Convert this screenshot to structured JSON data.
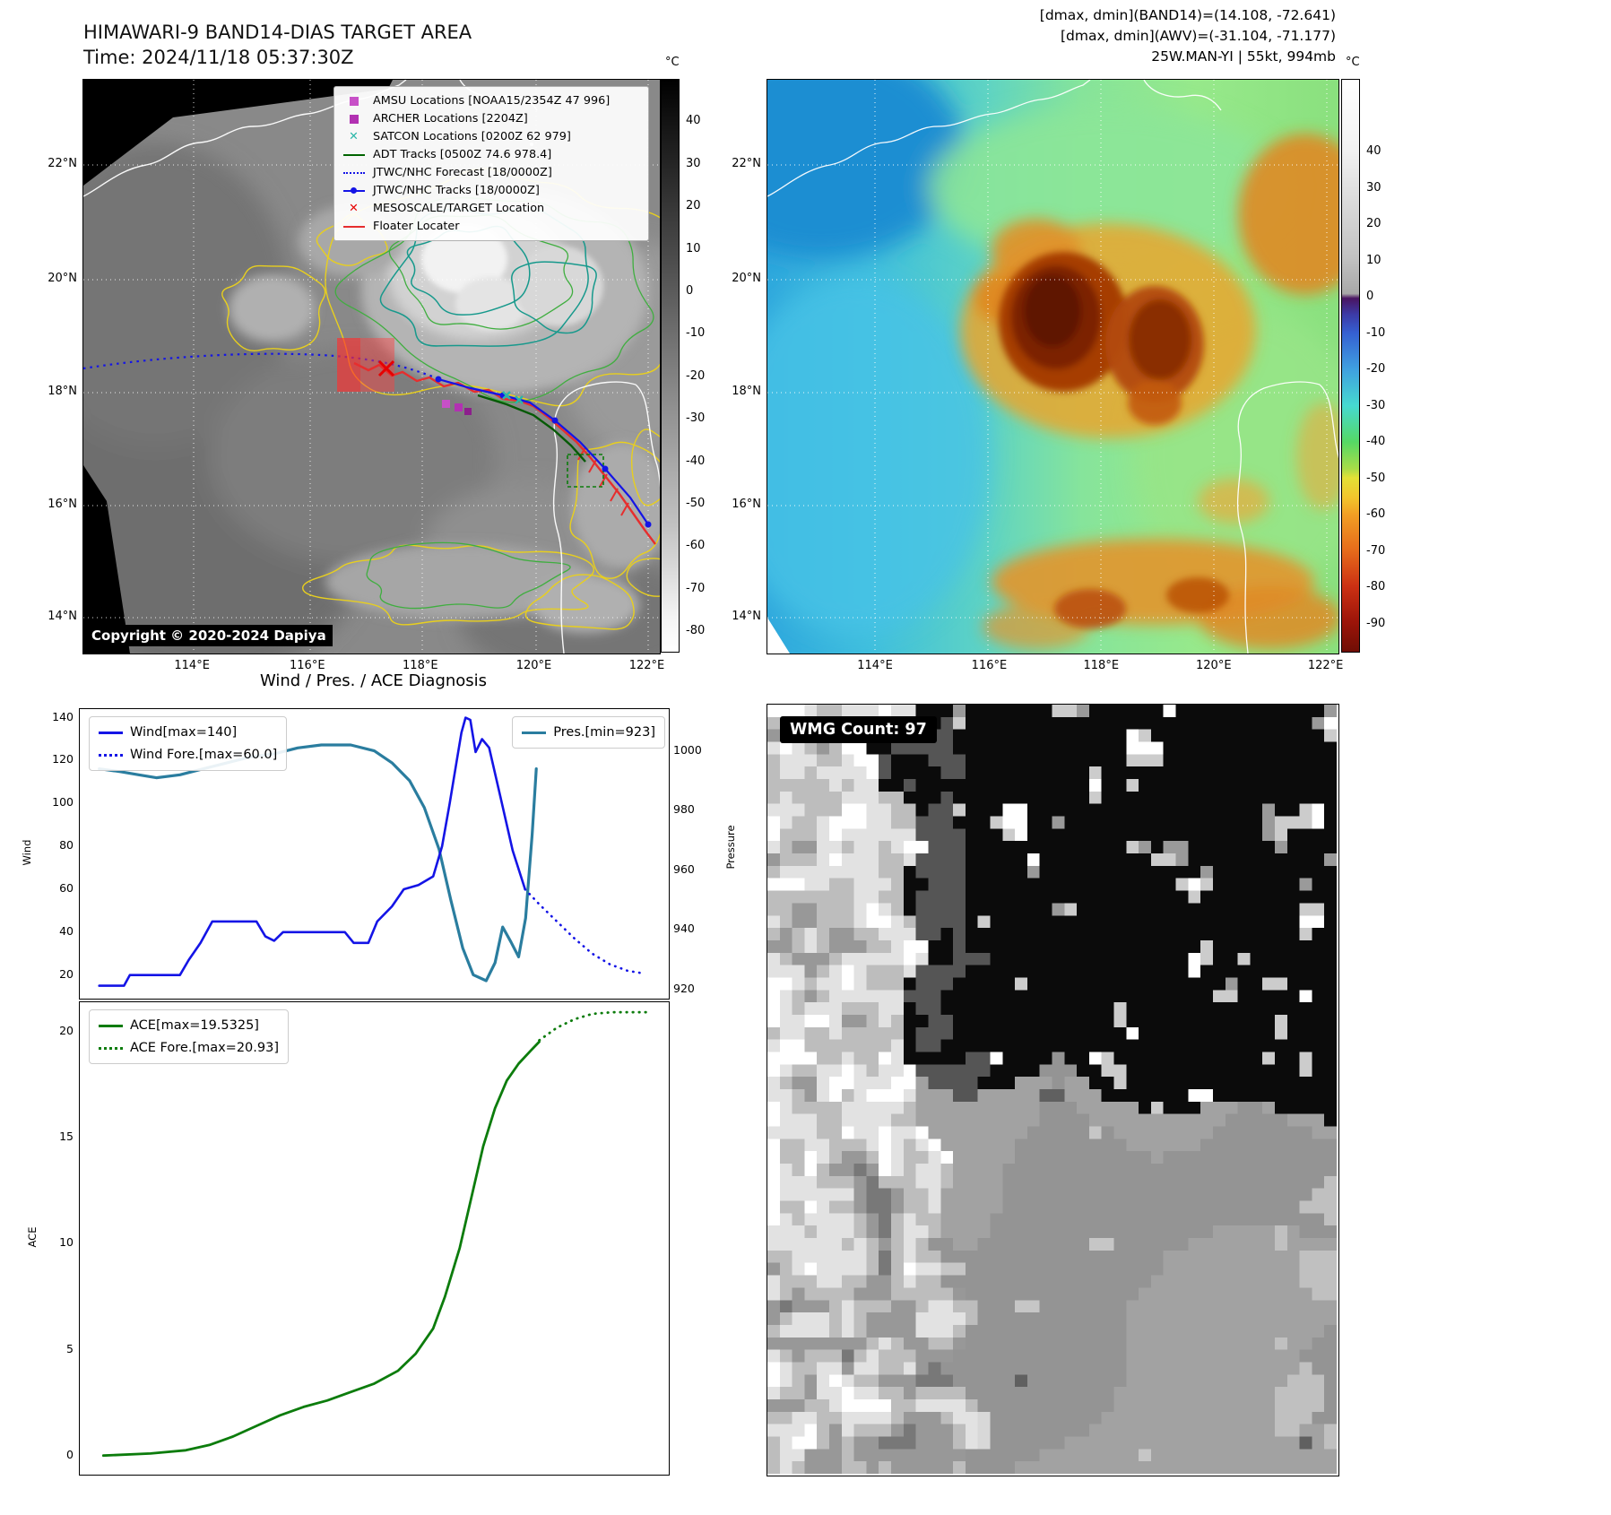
{
  "panels": {
    "band14": {
      "title_line1": "HIMAWARI-9 BAND14-DIAS TARGET AREA",
      "title_line2": "Time: 2024/11/18 05:37:30Z",
      "copyright": "Copyright © 2020-2024 Dapiya",
      "colorbar_unit": "°C",
      "colorbar_ticks": [
        40,
        30,
        20,
        10,
        0,
        -10,
        -20,
        -30,
        -40,
        -50,
        -60,
        -70,
        -80
      ],
      "x_ticks": [
        "114°E",
        "116°E",
        "118°E",
        "120°E",
        "122°E"
      ],
      "y_ticks": [
        "22°N",
        "20°N",
        "18°N",
        "16°N",
        "14°N"
      ],
      "legend": [
        {
          "marker": "square",
          "color": "#c750c7",
          "label": "AMSU Locations [NOAA15/2354Z 47 996]"
        },
        {
          "marker": "square",
          "color": "#b231b2",
          "label": "ARCHER Locations [2204Z]"
        },
        {
          "marker": "x",
          "color": "#29b6a8",
          "label": "SATCON Locations [0200Z 62 979]"
        },
        {
          "marker": "line",
          "color": "#006400",
          "label": "ADT Tracks [0500Z 74.6 978.4]"
        },
        {
          "marker": "dotted",
          "color": "#1414e6",
          "label": "JTWC/NHC Forecast [18/0000Z]"
        },
        {
          "marker": "line-dot",
          "color": "#1414e6",
          "label": "JTWC/NHC Tracks [18/0000Z]"
        },
        {
          "marker": "x",
          "color": "#e60000",
          "label": "MESOSCALE/TARGET Location"
        },
        {
          "marker": "line",
          "color": "#e62e2e",
          "label": "Floater Locater"
        }
      ]
    },
    "awv": {
      "header_lines": [
        "[dmax, dmin](BAND14)=(14.108, -72.641)",
        "[dmax, dmin](AWV)=(-31.104, -71.177)",
        "25W.MAN-YI | 55kt, 994mb"
      ],
      "colorbar_unit": "°C",
      "colorbar_ticks": [
        40,
        30,
        20,
        10,
        0,
        -10,
        -20,
        -30,
        -40,
        -50,
        -60,
        -70,
        -80,
        -90
      ],
      "x_ticks": [
        "114°E",
        "116°E",
        "118°E",
        "120°E",
        "122°E"
      ],
      "y_ticks": [
        "22°N",
        "20°N",
        "18°N",
        "16°N",
        "14°N"
      ]
    },
    "diagnosis": {
      "title": "Wind / Pres. / ACE Diagnosis"
    },
    "wmg": {
      "label": "WMG Count: 97"
    }
  },
  "chart_data": [
    {
      "type": "line",
      "title": "Wind / Pres. / ACE Diagnosis",
      "xlabel": "",
      "ylabel": "Wind",
      "y2label": "Pressure",
      "ylim": [
        9,
        144
      ],
      "y2lim": [
        917,
        1014
      ],
      "yticks": [
        20,
        40,
        60,
        80,
        100,
        120,
        140
      ],
      "y2ticks": [
        920,
        940,
        960,
        980,
        1000
      ],
      "grid": false,
      "legend_position": {
        "wind": "upper left",
        "pressure": "upper right"
      },
      "series": [
        {
          "name": "Wind[max=140]",
          "axis": "left",
          "style": "solid",
          "color": "#1414e6",
          "points": [
            [
              0.033,
              15
            ],
            [
              0.075,
              15
            ],
            [
              0.085,
              20
            ],
            [
              0.17,
              20
            ],
            [
              0.185,
              27
            ],
            [
              0.205,
              35
            ],
            [
              0.225,
              45
            ],
            [
              0.3,
              45
            ],
            [
              0.315,
              38
            ],
            [
              0.33,
              36
            ],
            [
              0.345,
              40
            ],
            [
              0.45,
              40
            ],
            [
              0.465,
              35
            ],
            [
              0.49,
              35
            ],
            [
              0.505,
              45
            ],
            [
              0.53,
              52
            ],
            [
              0.55,
              60
            ],
            [
              0.575,
              62
            ],
            [
              0.6,
              66
            ],
            [
              0.615,
              80
            ],
            [
              0.628,
              100
            ],
            [
              0.64,
              120
            ],
            [
              0.648,
              133
            ],
            [
              0.655,
              140
            ],
            [
              0.663,
              139
            ],
            [
              0.672,
              124
            ],
            [
              0.683,
              130
            ],
            [
              0.695,
              126
            ],
            [
              0.715,
              102
            ],
            [
              0.735,
              78
            ],
            [
              0.756,
              60
            ]
          ]
        },
        {
          "name": "Wind Fore.[max=60.0]",
          "axis": "left",
          "style": "dotted",
          "color": "#1414e6",
          "points": [
            [
              0.756,
              60
            ],
            [
              0.78,
              53
            ],
            [
              0.81,
              45
            ],
            [
              0.84,
              37
            ],
            [
              0.87,
              30
            ],
            [
              0.9,
              25
            ],
            [
              0.93,
              22
            ],
            [
              0.952,
              21
            ]
          ]
        },
        {
          "name": "Pres.[min=923]",
          "axis": "right",
          "style": "solid",
          "color": "#2a7d9f",
          "points": [
            [
              0.033,
              994
            ],
            [
              0.07,
              993
            ],
            [
              0.1,
              992
            ],
            [
              0.13,
              991
            ],
            [
              0.17,
              992
            ],
            [
              0.21,
              994
            ],
            [
              0.25,
              996
            ],
            [
              0.29,
              998
            ],
            [
              0.33,
              999
            ],
            [
              0.37,
              1001
            ],
            [
              0.41,
              1002
            ],
            [
              0.46,
              1002
            ],
            [
              0.5,
              1000
            ],
            [
              0.53,
              996
            ],
            [
              0.56,
              990
            ],
            [
              0.585,
              981
            ],
            [
              0.61,
              967
            ],
            [
              0.63,
              950
            ],
            [
              0.65,
              934
            ],
            [
              0.668,
              925
            ],
            [
              0.69,
              923
            ],
            [
              0.705,
              929
            ],
            [
              0.718,
              941
            ],
            [
              0.732,
              936
            ],
            [
              0.745,
              931
            ],
            [
              0.757,
              944
            ],
            [
              0.768,
              972
            ],
            [
              0.775,
              994
            ]
          ]
        }
      ]
    },
    {
      "type": "line",
      "title": "",
      "xlabel": "",
      "ylabel": "ACE",
      "ylim": [
        -0.9,
        21.4
      ],
      "yticks": [
        0,
        5,
        10,
        15,
        20
      ],
      "grid": false,
      "legend_position": "upper left",
      "series": [
        {
          "name": "ACE[max=19.5325]",
          "axis": "left",
          "style": "solid",
          "color": "#0c7c0c",
          "points": [
            [
              0.04,
              0.0
            ],
            [
              0.12,
              0.1
            ],
            [
              0.18,
              0.25
            ],
            [
              0.22,
              0.5
            ],
            [
              0.26,
              0.9
            ],
            [
              0.3,
              1.4
            ],
            [
              0.34,
              1.9
            ],
            [
              0.38,
              2.3
            ],
            [
              0.42,
              2.6
            ],
            [
              0.46,
              3.0
            ],
            [
              0.5,
              3.4
            ],
            [
              0.54,
              4.0
            ],
            [
              0.57,
              4.8
            ],
            [
              0.6,
              6.0
            ],
            [
              0.62,
              7.5
            ],
            [
              0.645,
              9.8
            ],
            [
              0.665,
              12.2
            ],
            [
              0.685,
              14.6
            ],
            [
              0.705,
              16.4
            ],
            [
              0.725,
              17.7
            ],
            [
              0.745,
              18.5
            ],
            [
              0.765,
              19.1
            ],
            [
              0.78,
              19.5325
            ]
          ]
        },
        {
          "name": "ACE Fore.[max=20.93]",
          "axis": "left",
          "style": "dotted",
          "color": "#0c7c0c",
          "points": [
            [
              0.78,
              19.6
            ],
            [
              0.81,
              20.2
            ],
            [
              0.84,
              20.6
            ],
            [
              0.87,
              20.85
            ],
            [
              0.905,
              20.93
            ],
            [
              0.97,
              20.93
            ]
          ]
        }
      ]
    }
  ]
}
